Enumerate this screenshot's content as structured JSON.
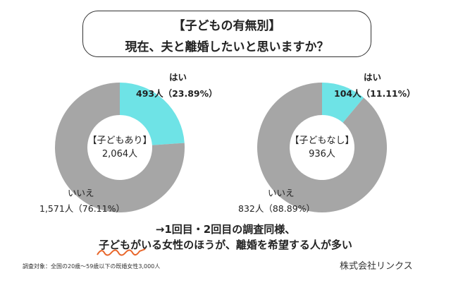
{
  "title": {
    "line1": "【子どもの有無別】",
    "line2": "現在、夫と離婚したいと思いますか？"
  },
  "chart_data": [
    {
      "type": "pie",
      "donut": true,
      "center_label": "【子どもあり】",
      "center_total": "2,064人",
      "slices": [
        {
          "name": "はい",
          "count": 493,
          "percent": 23.89,
          "label": "493人（23.89%）",
          "color": "#6ee3e6"
        },
        {
          "name": "いいえ",
          "count": 1571,
          "percent": 76.11,
          "label": "1,571人（76.11%）",
          "color": "#a6a6a6"
        }
      ]
    },
    {
      "type": "pie",
      "donut": true,
      "center_label": "【子どもなし】",
      "center_total": "936人",
      "slices": [
        {
          "name": "はい",
          "count": 104,
          "percent": 11.11,
          "label": "104人（11.11%）",
          "color": "#6ee3e6"
        },
        {
          "name": "いいえ",
          "count": 832,
          "percent": 88.89,
          "label": "832人（88.89%）",
          "color": "#a6a6a6"
        }
      ]
    }
  ],
  "conclusion": {
    "line1": "→1回目・2回目の調査同様、",
    "line2": "子どもがいる女性のほうが、離婚を希望する人が多い"
  },
  "note": "調査対象：全国の20歳〜59歳以下の既婚女性3,000人",
  "company": "株式会社リンクス",
  "colors": {
    "underline": "#e8662a"
  }
}
